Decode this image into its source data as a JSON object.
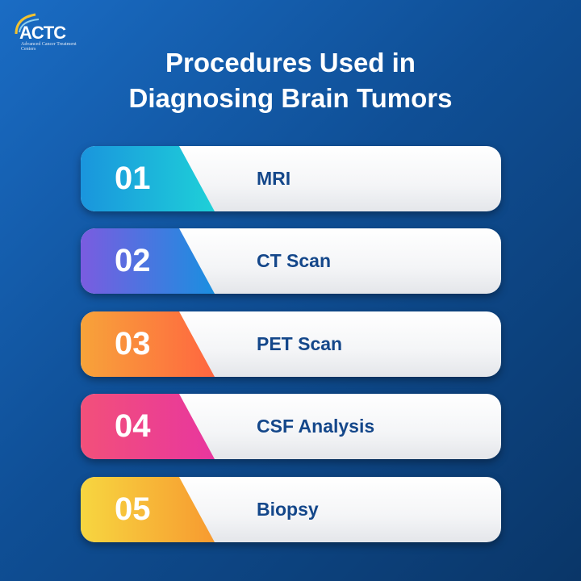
{
  "logo": {
    "name": "ACTC",
    "subtitle": "Advanced Cancer Treatment Centers"
  },
  "title_lines": [
    "Procedures Used in",
    "Diagnosing Brain Tumors"
  ],
  "items": [
    {
      "number": "01",
      "label": "MRI",
      "colors": [
        "#1a95dd",
        "#1ed0d8"
      ]
    },
    {
      "number": "02",
      "label": "CT Scan",
      "colors": [
        "#7a5ce0",
        "#1a8fe0"
      ]
    },
    {
      "number": "03",
      "label": "PET Scan",
      "colors": [
        "#f7a33a",
        "#ff6640"
      ]
    },
    {
      "number": "04",
      "label": "CSF Analysis",
      "colors": [
        "#f2507a",
        "#e8369e"
      ]
    },
    {
      "number": "05",
      "label": "Biopsy",
      "colors": [
        "#f7d640",
        "#f79a30"
      ]
    }
  ],
  "text_color": "#14478a"
}
